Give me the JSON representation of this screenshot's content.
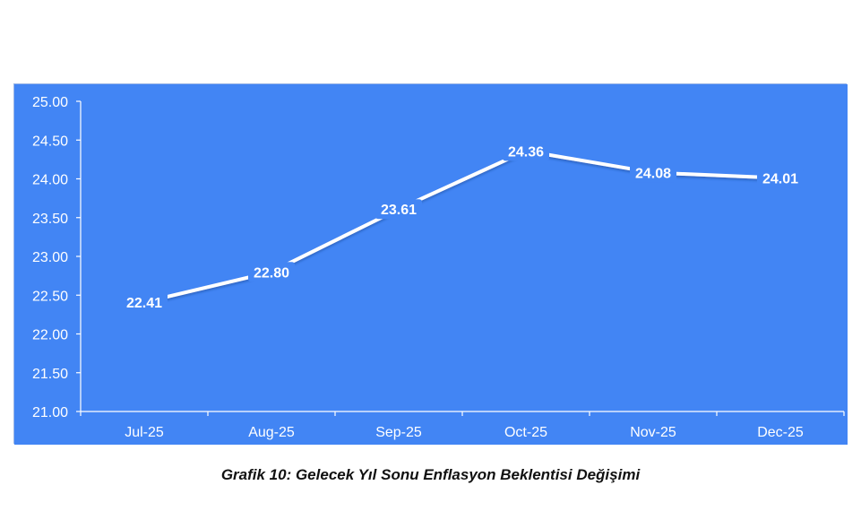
{
  "caption": "Grafik 10: Gelecek Yıl Sonu Enflasyon Beklentisi Değişimi",
  "colors": {
    "background": "#4285f4",
    "line": "#ffffff",
    "text": "#ffffff"
  },
  "chart_data": {
    "type": "line",
    "categories": [
      "Jul-25",
      "Aug-25",
      "Sep-25",
      "Oct-25",
      "Nov-25",
      "Dec-25"
    ],
    "values": [
      22.41,
      22.8,
      23.61,
      24.36,
      24.08,
      24.01
    ],
    "data_labels": [
      "22.41",
      "22.80",
      "23.61",
      "24.36",
      "24.08",
      "24.01"
    ],
    "ylim": [
      21.0,
      25.0
    ],
    "yticks": [
      "21.00",
      "21.50",
      "22.00",
      "22.50",
      "23.00",
      "23.50",
      "24.00",
      "24.50",
      "25.00"
    ],
    "grid": false,
    "drop_lines": true,
    "legend": "none"
  }
}
